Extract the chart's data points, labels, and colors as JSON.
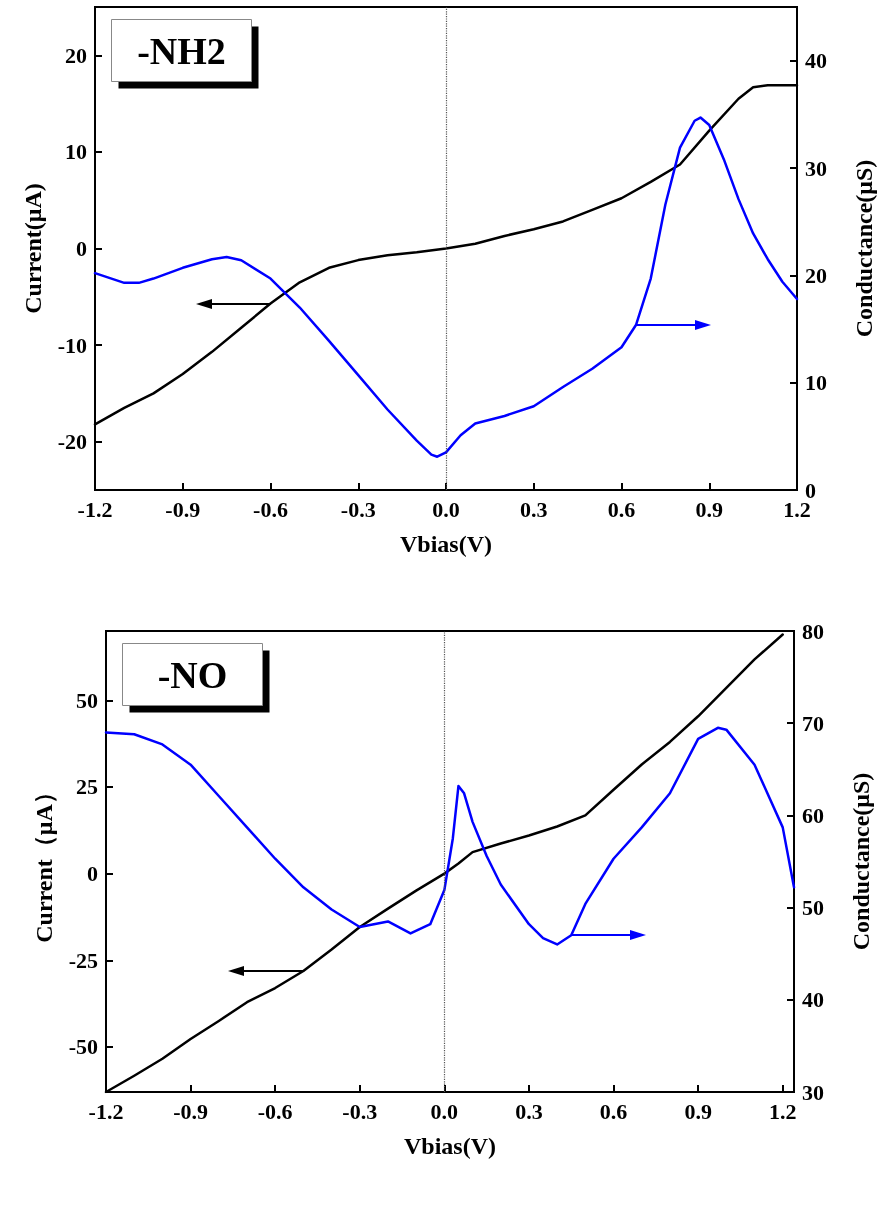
{
  "chart_data": [
    {
      "type": "line",
      "annotations": [
        "-NH2"
      ],
      "xlabel": "Vbias(V)",
      "ylabel": "Current(μA)",
      "y2label": "Conductance(μS)",
      "xlim": [
        -1.2,
        1.2
      ],
      "xticks": [
        -1.2,
        -0.9,
        -0.6,
        -0.3,
        {
          "value": 0,
          "label": "0.0"
        },
        0.3,
        0.6,
        0.9,
        1.2
      ],
      "ylim": [
        -25,
        25
      ],
      "yticks": [
        -20,
        -10,
        0,
        10,
        20
      ],
      "y2lim": [
        0,
        45
      ],
      "y2ticks": [
        0,
        10,
        20,
        30,
        40
      ],
      "marker": "none",
      "line_style": "solid",
      "ref_lines": [
        {
          "axis": "x",
          "value": 0,
          "label": null,
          "color": "#555555",
          "line_style": "dotted"
        }
      ],
      "series": [
        {
          "color": "#000000",
          "axis": "y",
          "x": [
            -1.2,
            -1.1,
            -1.0,
            -0.9,
            -0.8,
            -0.7,
            -0.6,
            -0.5,
            -0.4,
            -0.3,
            -0.2,
            -0.1,
            0,
            0.1,
            0.2,
            0.3,
            0.4,
            0.5,
            0.6,
            0.7,
            0.8,
            0.9,
            1.0,
            1.05,
            1.1,
            1.2
          ],
          "values": [
            -18.2,
            -16.5,
            -15,
            -13,
            -10.7,
            -8.2,
            -5.7,
            -3.5,
            -2,
            -1.2,
            -0.7,
            -0.4,
            0,
            0.5,
            1.3,
            2,
            2.8,
            4,
            5.2,
            6.9,
            8.7,
            12.2,
            15.5,
            16.7,
            16.9,
            16.9
          ]
        },
        {
          "color": "#0000ff",
          "axis": "y2",
          "x": [
            -1.2,
            -1.1,
            -1.05,
            -1.0,
            -0.9,
            -0.8,
            -0.75,
            -0.7,
            -0.6,
            -0.5,
            -0.4,
            -0.3,
            -0.2,
            -0.1,
            -0.05,
            -0.03,
            0,
            0.05,
            0.1,
            0.2,
            0.3,
            0.4,
            0.5,
            0.6,
            0.65,
            0.7,
            0.75,
            0.8,
            0.85,
            0.87,
            0.9,
            0.95,
            1.0,
            1.05,
            1.1,
            1.15,
            1.2
          ],
          "values": [
            20.2,
            19.3,
            19.3,
            19.7,
            20.7,
            21.5,
            21.7,
            21.4,
            19.7,
            17,
            13.9,
            10.7,
            7.5,
            4.6,
            3.3,
            3.1,
            3.5,
            5.1,
            6.2,
            6.9,
            7.8,
            9.6,
            11.3,
            13.3,
            15.4,
            19.7,
            26.6,
            31.9,
            34.4,
            34.7,
            34,
            30.8,
            27.1,
            23.9,
            21.5,
            19.4,
            17.8
          ]
        }
      ]
    },
    {
      "type": "line",
      "annotations": [
        "-NO"
      ],
      "xlabel": "Vbias(V)",
      "ylabel": "Current（μA）",
      "y2label": "Conductance(μS)",
      "xlim": [
        -1.2,
        1.24
      ],
      "xticks": [
        -1.2,
        -0.9,
        -0.6,
        -0.3,
        {
          "value": 0,
          "label": "0.0"
        },
        0.3,
        0.6,
        0.9,
        1.2
      ],
      "ylim": [
        -63,
        70
      ],
      "yticks": [
        -50,
        -25,
        0,
        25,
        50
      ],
      "y2lim": [
        30,
        80
      ],
      "y2ticks": [
        30,
        40,
        50,
        60,
        70,
        80
      ],
      "marker": "none",
      "line_style": "solid",
      "ref_lines": [
        {
          "axis": "x",
          "value": 0,
          "label": null,
          "color": "#555555",
          "line_style": "dotted"
        }
      ],
      "series": [
        {
          "color": "#000000",
          "axis": "y",
          "x": [
            -1.2,
            -1.1,
            -1.0,
            -0.9,
            -0.8,
            -0.7,
            -0.6,
            -0.5,
            -0.4,
            -0.3,
            -0.2,
            -0.1,
            0,
            0.05,
            0.1,
            0.2,
            0.3,
            0.4,
            0.5,
            0.6,
            0.7,
            0.8,
            0.9,
            1.0,
            1.1,
            1.2
          ],
          "values": [
            -63,
            -58.3,
            -53.4,
            -47.7,
            -42.5,
            -37.1,
            -33,
            -28.1,
            -21.9,
            -15.4,
            -10.1,
            -4.9,
            0,
            2.9,
            6.2,
            8.7,
            11,
            13.6,
            16.8,
            24.2,
            31.5,
            38,
            45.4,
            53.6,
            61.8,
            69
          ]
        },
        {
          "color": "#0000ff",
          "axis": "y2",
          "x": [
            -1.2,
            -1.1,
            -1.0,
            -0.9,
            -0.8,
            -0.7,
            -0.6,
            -0.5,
            -0.4,
            -0.3,
            -0.2,
            -0.12,
            -0.05,
            0,
            0.03,
            0.05,
            0.07,
            0.1,
            0.15,
            0.2,
            0.3,
            0.35,
            0.4,
            0.45,
            0.5,
            0.6,
            0.7,
            0.8,
            0.9,
            0.97,
            1.0,
            1.1,
            1.2,
            1.24
          ],
          "values": [
            69,
            68.8,
            67.7,
            65.5,
            62.1,
            58.7,
            55.3,
            52.2,
            49.8,
            47.9,
            48.5,
            47.2,
            48.2,
            51.9,
            57.5,
            63.2,
            62.4,
            59.3,
            55.6,
            52.5,
            48.2,
            46.7,
            46,
            47,
            50.4,
            55.3,
            58.7,
            62.4,
            68.3,
            69.5,
            69.3,
            65.5,
            58.7,
            52.2
          ]
        }
      ]
    }
  ]
}
